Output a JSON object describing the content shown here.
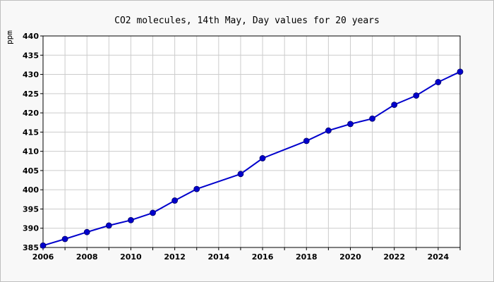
{
  "chart_data": {
    "type": "line",
    "title": "CO2 molecules, 14th May, Day values for 20 years",
    "xlabel": "",
    "ylabel": "ppm",
    "xlim": [
      2006,
      2025
    ],
    "ylim": [
      385,
      440
    ],
    "x_ticks": [
      2006,
      2008,
      2010,
      2012,
      2014,
      2016,
      2018,
      2020,
      2022,
      2024
    ],
    "y_ticks": [
      385,
      390,
      395,
      400,
      405,
      410,
      415,
      420,
      425,
      430,
      435,
      440
    ],
    "grid": true,
    "series": [
      {
        "color": "#0000cc",
        "x": [
          2006,
          2007,
          2008,
          2009,
          2010,
          2011,
          2012,
          2013,
          2015,
          2016,
          2018,
          2019,
          2020,
          2021,
          2022,
          2023,
          2024,
          2025
        ],
        "y": [
          385.5,
          387.2,
          389.0,
          390.7,
          392.1,
          394.0,
          397.2,
          400.2,
          404.1,
          408.2,
          412.7,
          415.4,
          417.1,
          418.5,
          422.1,
          424.5,
          428.0,
          430.7
        ]
      }
    ]
  }
}
